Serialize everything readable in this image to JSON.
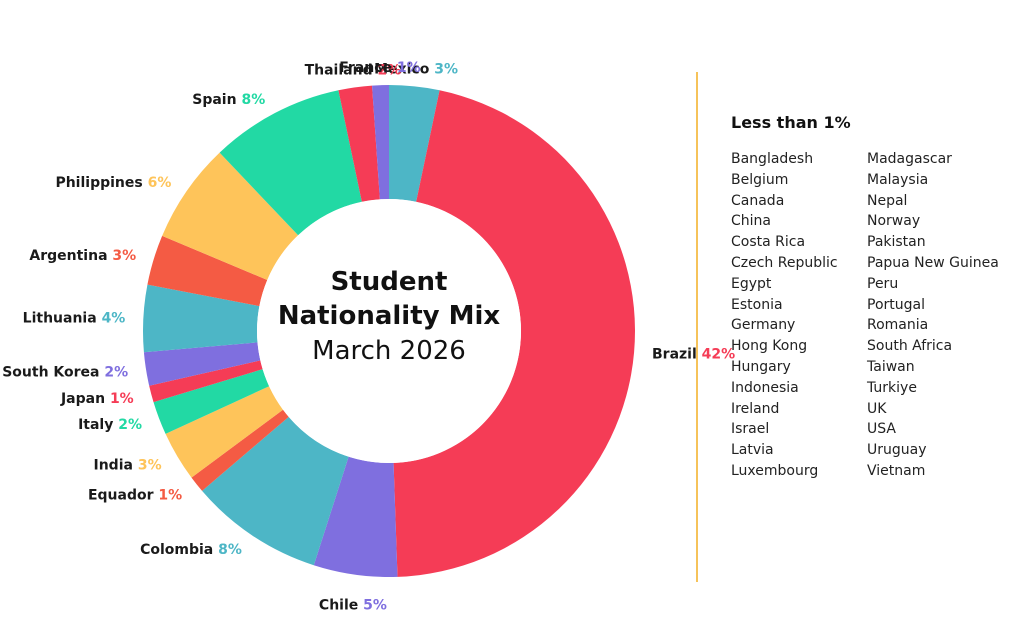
{
  "chart_data": {
    "type": "pie",
    "style": "donut",
    "title": "Student Nationality Mix",
    "subtitle": "March 2026",
    "slices": [
      {
        "label": "Mexico",
        "value": 3,
        "value_label": "3%",
        "color": "#4db6c6"
      },
      {
        "label": "Brazil",
        "value": 42,
        "value_label": "42%",
        "color": "#f53c56"
      },
      {
        "label": "Chile",
        "value": 5,
        "value_label": "5%",
        "color": "#7f6fdf"
      },
      {
        "label": "Colombia",
        "value": 8,
        "value_label": "8%",
        "color": "#4db6c6"
      },
      {
        "label": "Equador",
        "value": 1,
        "value_label": "1%",
        "color": "#f45b44"
      },
      {
        "label": "India",
        "value": 3,
        "value_label": "3%",
        "color": "#fec45a"
      },
      {
        "label": "Italy",
        "value": 2,
        "value_label": "2%",
        "color": "#22d9a4"
      },
      {
        "label": "Japan",
        "value": 1,
        "value_label": "1%",
        "color": "#f53c56"
      },
      {
        "label": "South Korea",
        "value": 2,
        "value_label": "2%",
        "color": "#7f6fdf"
      },
      {
        "label": "Lithuania",
        "value": 4,
        "value_label": "4%",
        "color": "#4db6c6"
      },
      {
        "label": "Argentina",
        "value": 3,
        "value_label": "3%",
        "color": "#f45b44"
      },
      {
        "label": "Philippines",
        "value": 6,
        "value_label": "6%",
        "color": "#fec45a"
      },
      {
        "label": "Spain",
        "value": 8,
        "value_label": "8%",
        "color": "#22d9a4"
      },
      {
        "label": "Thailand",
        "value": 2,
        "value_label": "2%",
        "color": "#f53c56"
      },
      {
        "label": "France",
        "value": 1,
        "value_label": "1%",
        "color": "#7f6fdf"
      }
    ]
  },
  "legend": {
    "title": "Less than 1%",
    "column_a": [
      "Bangladesh",
      "Belgium",
      "Canada",
      "China",
      "Costa Rica",
      "Czech Republic",
      "Egypt",
      "Estonia",
      "Germany",
      "Hong Kong",
      "Hungary",
      "Indonesia",
      "Ireland",
      "Israel",
      "Latvia",
      "Luxembourg"
    ],
    "column_b": [
      "Madagascar",
      "Malaysia",
      "Nepal",
      "Norway",
      "Pakistan",
      "Papua New Guinea",
      "Peru",
      "Portugal",
      "Romania",
      "South Africa",
      "Taiwan",
      "Turkiye",
      "UK",
      "USA",
      "Uruguay",
      "Vietnam"
    ]
  },
  "colors": {
    "divider": "#f6c35a",
    "center_fill": "#ffffff"
  }
}
